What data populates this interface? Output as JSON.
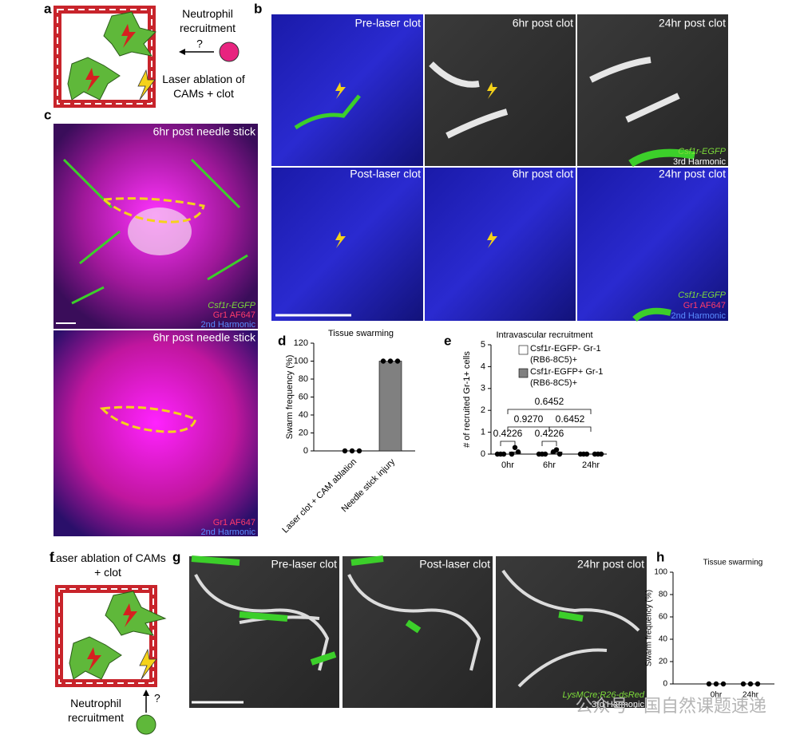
{
  "panel_labels": [
    "a",
    "b",
    "c",
    "d",
    "e",
    "f",
    "g",
    "h"
  ],
  "schematic_a": {
    "top": "Neutrophil recruitment",
    "question": "?",
    "bottom": "Laser ablation of CAMs + clot"
  },
  "schematic_f": {
    "top": "Laser ablation of CAMs + clot",
    "question": "?",
    "bottom": "Neutrophil recruitment"
  },
  "panel_b": {
    "tiles": [
      "Pre-laser clot",
      "6hr post clot",
      "24hr post clot",
      "Post-laser clot",
      "6hr post clot",
      "24hr post clot"
    ],
    "legend_top": [
      "Csf1r-EGFP",
      "3rd Harmonic"
    ],
    "legend_bottom": [
      "Csf1r-EGFP",
      "Gr1 AF647",
      "2nd Harmonic"
    ]
  },
  "panel_c": {
    "tiles": [
      "6hr post needle stick",
      "6hr post needle stick"
    ],
    "legend_top": [
      "Csf1r-EGFP",
      "Gr1 AF647",
      "2nd Harmonic"
    ],
    "legend_bottom": [
      "Gr1 AF647",
      "2nd Harmonic"
    ]
  },
  "panel_g": {
    "tiles": [
      "Pre-laser clot",
      "Post-laser clot",
      "24hr post clot"
    ],
    "legend": [
      "LysMCre;R26-dsRed",
      "3rd Harmonic"
    ]
  },
  "watermark": "公众号 · 国自然课题速递",
  "chart_data": [
    {
      "type": "bar",
      "title": "Tissue swarming",
      "y_label": "Swarm frequency (%)",
      "categories": [
        "Laser clot + CAM ablation",
        "Needle stick injury"
      ],
      "values": [
        0,
        100
      ],
      "points": [
        [
          0,
          0,
          0
        ],
        [
          100,
          100,
          100
        ]
      ],
      "color": "#808080",
      "ylim": [
        0,
        120
      ],
      "yticks": [
        0,
        20,
        40,
        60,
        80,
        100,
        120
      ]
    },
    {
      "type": "grouped_bar",
      "title": "Intravascular recruitment",
      "y_label": "# of recruited Gr-1+ cells",
      "categories": [
        "0hr",
        "6hr",
        "24hr"
      ],
      "series": [
        {
          "name": "Csf1r-EGFP- Gr-1 (RB6-8C5)+",
          "color": "#ffffff",
          "values": [
            0,
            0,
            0
          ],
          "points": [
            [
              0,
              0,
              0
            ],
            [
              0,
              0,
              0
            ],
            [
              0,
              0,
              0
            ]
          ]
        },
        {
          "name": "Csf1r-EGFP+ Gr-1 (RB6-8C5)+",
          "color": "#808080",
          "values": [
            0.1,
            0.1,
            0
          ],
          "points": [
            [
              0,
              0.3,
              0.1
            ],
            [
              0.1,
              0.2,
              0
            ],
            [
              0,
              0,
              0
            ]
          ]
        }
      ],
      "p_values": [
        "0.4226",
        "0.4226",
        "0.9270",
        "0.6452",
        "0.6452"
      ],
      "ylim": [
        0,
        5
      ],
      "yticks": [
        0,
        1,
        2,
        3,
        4,
        5
      ]
    },
    {
      "type": "bar",
      "title": "Tissue swarming",
      "y_label": "Swarm frequency (%)",
      "categories": [
        "0hr",
        "24hr"
      ],
      "values": [
        0,
        0
      ],
      "points": [
        [
          0,
          0,
          0
        ],
        [
          0,
          0,
          0
        ]
      ],
      "color": "#808080",
      "ylim": [
        0,
        100
      ],
      "yticks": [
        0,
        20,
        40,
        60,
        80,
        100
      ]
    }
  ]
}
